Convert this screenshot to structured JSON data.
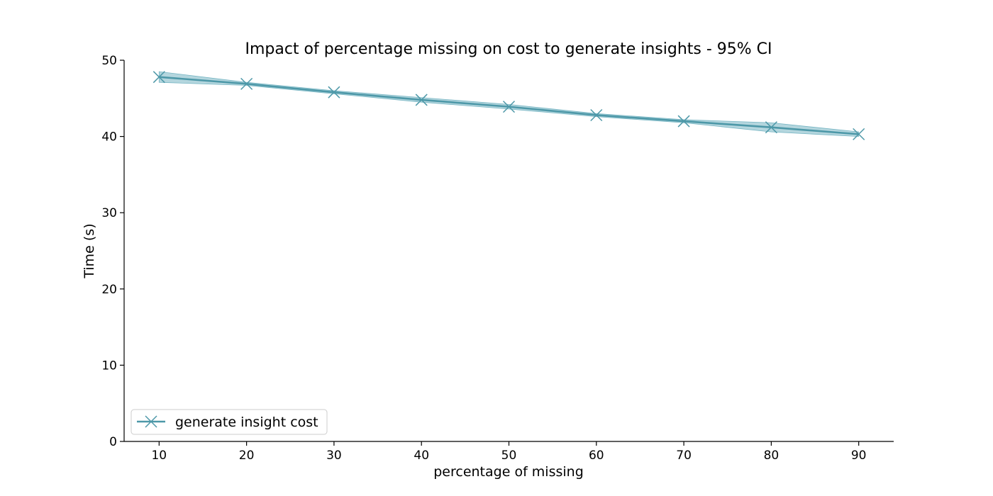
{
  "chart_data": {
    "type": "line",
    "title": "Impact of percentage missing on cost to generate insights - 95% CI",
    "xlabel": "percentage of missing",
    "ylabel": "Time (s)",
    "x": [
      10,
      20,
      30,
      40,
      50,
      60,
      70,
      80,
      90
    ],
    "xlim": [
      6,
      94
    ],
    "ylim": [
      0,
      50
    ],
    "xticks": [
      10,
      20,
      30,
      40,
      50,
      60,
      70,
      80,
      90
    ],
    "xtick_labels": [
      "10",
      "20",
      "30",
      "40",
      "50",
      "60",
      "70",
      "80",
      "90"
    ],
    "yticks": [
      0,
      10,
      20,
      30,
      40,
      50
    ],
    "ytick_labels": [
      "0",
      "10",
      "20",
      "30",
      "40",
      "50"
    ],
    "grid": false,
    "legend_position": "lower-left",
    "series": [
      {
        "name": "generate insight cost",
        "values": [
          47.8,
          46.9,
          45.8,
          44.8,
          43.9,
          42.8,
          42.0,
          41.2,
          40.3
        ],
        "ci_lower": [
          47.1,
          46.7,
          45.6,
          44.5,
          43.6,
          42.6,
          41.8,
          40.6,
          40.0
        ],
        "ci_upper": [
          48.5,
          47.1,
          46.0,
          45.1,
          44.2,
          43.0,
          42.2,
          41.8,
          40.6
        ],
        "marker": "x",
        "color": "#4d98a8",
        "band_color": "#76b5c3"
      }
    ]
  }
}
